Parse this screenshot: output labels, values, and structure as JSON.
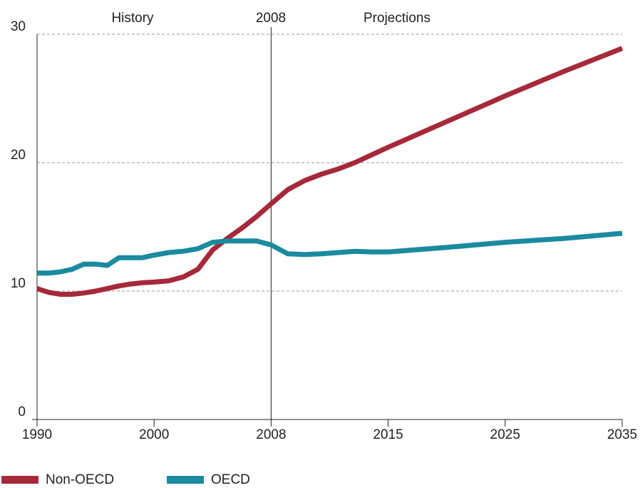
{
  "chart_data": {
    "type": "line",
    "annotations": [
      "History",
      "2008",
      "Projections"
    ],
    "x": [
      1990,
      1991,
      1992,
      1993,
      1994,
      1995,
      1996,
      1997,
      1998,
      1999,
      2000,
      2001,
      2002,
      2003,
      2004,
      2005,
      2006,
      2007,
      2008,
      2009,
      2010,
      2011,
      2012,
      2013,
      2014,
      2015,
      2020,
      2025,
      2030,
      2035
    ],
    "series": [
      {
        "name": "Non-OECD",
        "color": "#a6293a",
        "values": [
          10.2,
          9.9,
          9.75,
          9.75,
          9.85,
          10.0,
          10.2,
          10.4,
          10.55,
          10.65,
          10.7,
          10.8,
          11.1,
          11.7,
          13.2,
          14.1,
          14.9,
          15.8,
          16.8,
          17.9,
          18.6,
          19.1,
          19.5,
          20.0,
          20.6,
          21.2,
          23.2,
          25.2,
          27.1,
          28.9
        ]
      },
      {
        "name": "OECD",
        "color": "#1a8a9f",
        "values": [
          11.4,
          11.4,
          11.5,
          11.7,
          12.1,
          12.1,
          12.0,
          12.6,
          12.6,
          12.6,
          12.8,
          13.0,
          13.1,
          13.3,
          13.8,
          13.9,
          13.9,
          13.9,
          13.6,
          12.9,
          12.85,
          12.9,
          13.0,
          13.1,
          13.05,
          13.05,
          13.4,
          13.8,
          14.1,
          14.5
        ]
      }
    ],
    "xlim": [
      1990,
      2035
    ],
    "xticks": [
      1990,
      2000,
      2008,
      2015,
      2025,
      2035
    ],
    "ylim": [
      0,
      30
    ],
    "yticks": [
      0,
      10,
      20,
      30
    ],
    "grid": true,
    "divider": 2008
  }
}
